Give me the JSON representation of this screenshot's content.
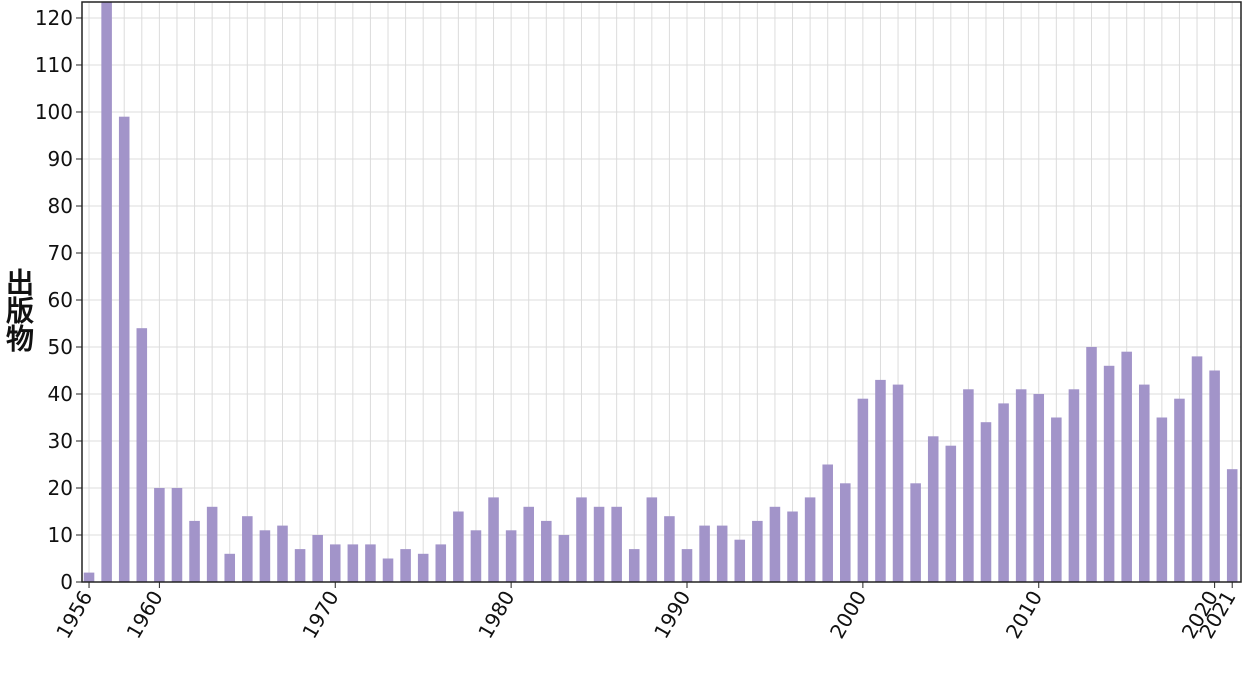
{
  "chart_data": {
    "type": "bar",
    "y_label": "出版物",
    "x": [
      1956,
      1957,
      1958,
      1959,
      1960,
      1961,
      1962,
      1963,
      1964,
      1965,
      1966,
      1967,
      1968,
      1969,
      1970,
      1971,
      1972,
      1973,
      1974,
      1975,
      1976,
      1977,
      1978,
      1979,
      1980,
      1981,
      1982,
      1983,
      1984,
      1985,
      1986,
      1987,
      1988,
      1989,
      1990,
      1991,
      1992,
      1993,
      1994,
      1995,
      1996,
      1997,
      1998,
      1999,
      2000,
      2001,
      2002,
      2003,
      2004,
      2005,
      2006,
      2007,
      2008,
      2009,
      2010,
      2011,
      2012,
      2013,
      2014,
      2015,
      2016,
      2017,
      2018,
      2019,
      2020,
      2021
    ],
    "values": [
      2,
      125,
      99,
      54,
      20,
      20,
      13,
      16,
      6,
      14,
      11,
      12,
      7,
      10,
      8,
      8,
      8,
      5,
      7,
      6,
      8,
      15,
      11,
      18,
      11,
      16,
      13,
      10,
      18,
      16,
      16,
      7,
      18,
      14,
      7,
      12,
      12,
      9,
      13,
      16,
      15,
      18,
      25,
      21,
      39,
      43,
      42,
      21,
      31,
      29,
      41,
      34,
      38,
      41,
      40,
      35,
      41,
      50,
      46,
      49,
      42,
      35,
      39,
      48,
      45,
      24
    ],
    "color": "#a294c9",
    "xlim": [
      1955.6,
      2021.5
    ],
    "xticks": [
      1956,
      1960,
      1970,
      1980,
      1990,
      2000,
      2010,
      2020,
      2021
    ],
    "ylim": [
      0,
      123.4
    ],
    "yticks": [
      0,
      10,
      20,
      30,
      40,
      50,
      60,
      70,
      80,
      90,
      100,
      110,
      120
    ],
    "grid": true
  }
}
